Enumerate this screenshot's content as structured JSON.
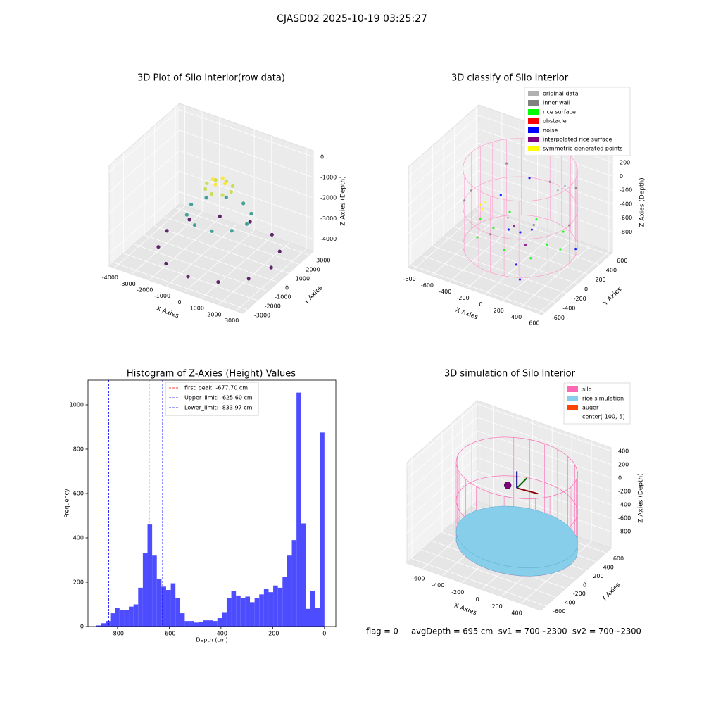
{
  "title": "CJASD02 2025-10-19 03:25:27",
  "status_text": "flag = 0     avgDepth = 695 cm  sv1 = 700~2300  sv2 = 700~2300",
  "chart_data": [
    {
      "type": "scatter3d",
      "title": "3D Plot of Silo Interior(row data)",
      "xlabel": "X Axies",
      "ylabel": "Y Axies",
      "zlabel": "Z Axies (Depth)",
      "xlim": [
        -4300,
        3400
      ],
      "ylim": [
        -3400,
        3400
      ],
      "zlim": [
        -4600,
        300
      ],
      "xticks": [
        -4000,
        -3000,
        -2000,
        -1000,
        0,
        1000,
        2000,
        3000
      ],
      "yticks": [
        -3000,
        -2000,
        -1000,
        0,
        1000,
        2000,
        3000
      ],
      "zticks": [
        -4000,
        -3000,
        -2000,
        -1000,
        0
      ],
      "series": [
        {
          "colormap": "viridis",
          "x": [
            3000,
            2598,
            1500,
            0,
            -1500,
            -2598,
            -3000,
            -2598,
            -1500,
            0,
            1500,
            2598,
            1600,
            1294,
            494,
            -494,
            -1294,
            -1600,
            -1294,
            -494,
            494,
            1294,
            700,
            495,
            0,
            -495,
            -700,
            -495,
            0,
            495,
            350,
            0,
            -350,
            0
          ],
          "y": [
            0,
            1500,
            2598,
            3000,
            2598,
            1500,
            0,
            -1500,
            -2598,
            -3000,
            -2598,
            -1500,
            0,
            941,
            1522,
            1522,
            941,
            0,
            -941,
            -1522,
            -1522,
            -941,
            0,
            495,
            700,
            495,
            0,
            -495,
            -700,
            -495,
            0,
            350,
            0,
            -350
          ],
          "z": [
            -4000,
            -4000,
            -4000,
            -4000,
            -4000,
            -4000,
            -4000,
            -4000,
            -4000,
            -4000,
            -4000,
            -4000,
            -2300,
            -2300,
            -2300,
            -2300,
            -2300,
            -2300,
            -2300,
            -2300,
            -2300,
            -2300,
            -1000,
            -1000,
            -1000,
            -1000,
            -1000,
            -1000,
            -1000,
            -1000,
            -700,
            -700,
            -700,
            -700
          ]
        }
      ]
    },
    {
      "type": "scatter3d",
      "title": "3D classify of Silo Interior",
      "xlabel": "X Axies",
      "ylabel": "Y Axies",
      "zlabel": "Z Axies (Depth)",
      "xlim": [
        -860,
        640
      ],
      "ylim": [
        -650,
        650
      ],
      "zlim": [
        -1100,
        350
      ],
      "xticks": [
        -800,
        -600,
        -400,
        -200,
        0,
        200,
        400,
        600
      ],
      "yticks": [
        -600,
        -400,
        -200,
        0,
        200,
        400,
        600
      ],
      "zticks": [
        -800,
        -600,
        -400,
        -200,
        0,
        200
      ],
      "silo": true,
      "series": [
        {
          "name": "original data",
          "color": "#b0b0b0",
          "x": [
            300,
            350,
            -200
          ],
          "y": [
            200,
            250,
            100
          ],
          "z": [
            -50,
            0,
            -600
          ]
        },
        {
          "name": "inner wall",
          "color": "#808080",
          "x": [
            550,
            389,
            0,
            -389,
            -550,
            -389,
            0,
            389
          ],
          "y": [
            0,
            389,
            550,
            389,
            0,
            -389,
            -550,
            -389
          ],
          "z": [
            -300,
            -100,
            -300,
            -100,
            -300,
            -100,
            -300,
            -100
          ]
        },
        {
          "name": "rice surface",
          "color": "#00ff00",
          "x": [
            -300,
            0,
            300,
            -300,
            300,
            -300,
            0,
            300,
            -450,
            450
          ],
          "y": [
            -300,
            -300,
            -300,
            0,
            0,
            300,
            300,
            300,
            0,
            0
          ],
          "z": [
            -650,
            -700,
            -680,
            -720,
            -690,
            -700,
            -670,
            -710,
            -660,
            -690
          ]
        },
        {
          "name": "obstacle",
          "color": "#ff0000"
        },
        {
          "name": "noise",
          "color": "#0000ff",
          "x": [
            0,
            100,
            -100,
            200,
            -400,
            500,
            -200,
            300
          ],
          "y": [
            0,
            50,
            -50,
            -400,
            300,
            200,
            500,
            -500
          ],
          "z": [
            -650,
            -600,
            -620,
            -750,
            -500,
            -800,
            -300,
            -850
          ]
        },
        {
          "name": "interpolated rice surface",
          "color": "#800080",
          "x": [
            -100,
            150
          ],
          "y": [
            50,
            -150
          ],
          "z": [
            -640,
            -660
          ]
        },
        {
          "name": "symmetric generated points",
          "color": "#ffff00",
          "x": [
            -500,
            -450,
            -480
          ],
          "y": [
            100,
            50,
            150
          ],
          "z": [
            -550,
            -560,
            -540
          ]
        }
      ]
    },
    {
      "type": "histogram",
      "title": "Histogram of Z-Axies (Height) Values",
      "xlabel": "Depth (cm)",
      "ylabel": "Frequency",
      "color": "#4d4dff",
      "xlim": [
        -914,
        44
      ],
      "ylim": [
        0,
        1111
      ],
      "xticks": [
        -800,
        -600,
        -400,
        -200,
        0
      ],
      "yticks": [
        0,
        200,
        400,
        600,
        800,
        1000
      ],
      "bins": [
        -882,
        -864,
        -846,
        -828,
        -810,
        -792,
        -774,
        -756,
        -738,
        -720,
        -702,
        -684,
        -666,
        -648,
        -630,
        -612,
        -594,
        -576,
        -558,
        -540,
        -522,
        -504,
        -486,
        -468,
        -450,
        -432,
        -414,
        -396,
        -378,
        -360,
        -342,
        -324,
        -306,
        -288,
        -270,
        -252,
        -234,
        -216,
        -198,
        -180,
        -162,
        -144,
        -126,
        -108,
        -90,
        -72,
        -54,
        -36,
        -18,
        0
      ],
      "values": [
        5,
        15,
        25,
        60,
        85,
        75,
        75,
        90,
        100,
        175,
        330,
        460,
        320,
        215,
        180,
        165,
        195,
        130,
        60,
        25,
        25,
        18,
        22,
        28,
        28,
        25,
        38,
        62,
        130,
        160,
        140,
        130,
        135,
        110,
        130,
        145,
        170,
        155,
        185,
        175,
        225,
        320,
        390,
        1055,
        465,
        80,
        160,
        85,
        875
      ],
      "vlines": [
        {
          "value": -677.7,
          "label": "first_peak: -677.70 cm",
          "color": "#ff0000"
        },
        {
          "value": -625.6,
          "label": "Upper_limit: -625.60 cm",
          "color": "#0000ff"
        },
        {
          "value": -833.97,
          "label": "Lower_limit: -833.97 cm",
          "color": "#0000ff"
        }
      ]
    },
    {
      "type": "simulation3d",
      "title": "3D simulation of Silo Interior",
      "xlabel": "X Axies",
      "ylabel": "Y Axies",
      "zlabel": "Z Axies (Depth)",
      "xlim": [
        -760,
        600
      ],
      "ylim": [
        -700,
        700
      ],
      "zlim": [
        -1050,
        450
      ],
      "xticks": [
        -600,
        -400,
        -200,
        0,
        200,
        400
      ],
      "yticks": [
        -600,
        -400,
        -200,
        0,
        200,
        400,
        600
      ],
      "zticks": [
        -800,
        -600,
        -400,
        -200,
        0,
        200,
        400
      ],
      "silo": true,
      "series": [
        {
          "name": "silo",
          "color": "#ff69b4"
        },
        {
          "name": "rice simulation",
          "color": "#87ceeb"
        },
        {
          "name": "auger",
          "color": "#ff4500"
        },
        {
          "name": "center(-100,-5)"
        }
      ]
    }
  ]
}
